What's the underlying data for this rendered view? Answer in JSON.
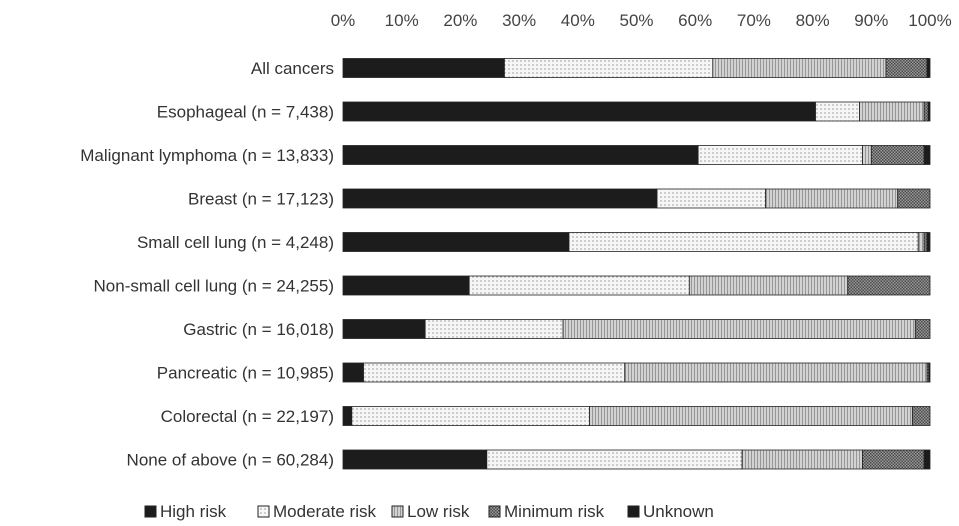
{
  "chart_data": {
    "type": "bar",
    "orientation": "horizontal",
    "stacked": "percent",
    "title": "",
    "xlabel": "",
    "ylabel": "",
    "xlim": [
      0,
      100
    ],
    "x_ticks": [
      "0%",
      "10%",
      "20%",
      "30%",
      "40%",
      "50%",
      "60%",
      "70%",
      "80%",
      "90%",
      "100%"
    ],
    "x_axis_position": "top",
    "grid": false,
    "legend_position": "bottom",
    "categories": [
      "All cancers",
      "Esophageal (n = 7,438)",
      "Malignant lymphoma (n = 13,833)",
      "Breast (n = 17,123)",
      "Small cell lung (n = 4,248)",
      "Non-small cell lung (n = 24,255)",
      "Gastric (n = 16,018)",
      "Pancreatic (n = 10,985)",
      "Colorectal (n = 22,197)",
      "None of above (n = 60,284)"
    ],
    "series": [
      {
        "name": "High risk",
        "pattern": "solid",
        "values": [
          27.5,
          80.5,
          60.5,
          53.5,
          38.5,
          21.5,
          14,
          3.5,
          1.5,
          24.5
        ]
      },
      {
        "name": "Moderate risk",
        "pattern": "dots",
        "values": [
          35.5,
          7.5,
          28,
          18.5,
          59.5,
          37.5,
          23.5,
          44.5,
          40.5,
          43.5
        ]
      },
      {
        "name": "Low risk",
        "pattern": "lines",
        "values": [
          29.5,
          11,
          1.5,
          22.5,
          1,
          27,
          60,
          51.5,
          55,
          20.5
        ]
      },
      {
        "name": "Minimum risk",
        "pattern": "dense",
        "values": [
          7,
          0.7,
          9,
          5.5,
          0.5,
          14,
          2.5,
          0.3,
          3,
          10.5
        ]
      },
      {
        "name": "Unknown",
        "pattern": "solid",
        "values": [
          0.5,
          0.3,
          1,
          0,
          0.5,
          0,
          0,
          0.2,
          0,
          1
        ]
      }
    ],
    "colors": {
      "solid": "#1c1c1c",
      "outline": "#222222",
      "dots_bg": "#f6f6f6",
      "lines_bg": "#c9c9c9",
      "dense_bg": "#8e8e8e"
    }
  }
}
